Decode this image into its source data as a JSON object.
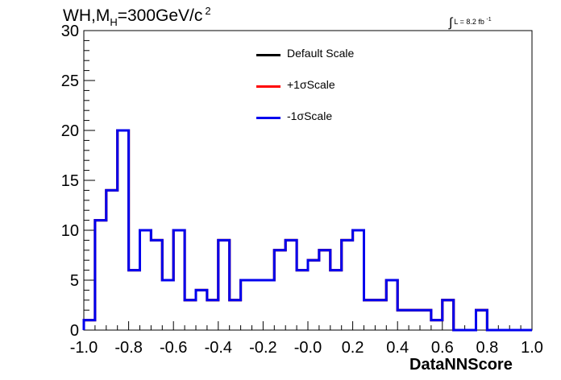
{
  "chart_data": {
    "type": "line",
    "title_main": "WH,M",
    "title_sub": "H",
    "title_rest": "=300GeV/c",
    "title_sup": "2",
    "lumi_symbol": "∫",
    "lumi_text": "L = 8.2 fb",
    "lumi_sup": "-1",
    "xlabel": "DataNNScore",
    "ylabel": "",
    "xlim": [
      -1.0,
      1.0
    ],
    "ylim": [
      0,
      30
    ],
    "xticks": [
      "-1.0",
      "-0.8",
      "-0.6",
      "-0.4",
      "-0.2",
      "-0.0",
      "0.2",
      "0.4",
      "0.6",
      "0.8",
      "1.0"
    ],
    "yticks": [
      "0",
      "5",
      "10",
      "15",
      "20",
      "25",
      "30"
    ],
    "bin_edges": [
      -1.0,
      -0.95,
      -0.9,
      -0.85,
      -0.8,
      -0.75,
      -0.7,
      -0.65,
      -0.6,
      -0.55,
      -0.5,
      -0.45,
      -0.4,
      -0.35,
      -0.3,
      -0.25,
      -0.2,
      -0.15,
      -0.1,
      -0.05,
      0.0,
      0.05,
      0.1,
      0.15,
      0.2,
      0.25,
      0.3,
      0.35,
      0.4,
      0.45,
      0.5,
      0.55,
      0.6,
      0.65,
      0.7,
      0.75,
      0.8,
      0.85,
      0.9,
      0.95,
      1.0
    ],
    "series": [
      {
        "name": "Default Scale",
        "color": "#000000",
        "values": [
          1,
          11,
          14,
          20,
          6,
          10,
          9,
          5,
          10,
          3,
          4,
          3,
          9,
          3,
          5,
          5,
          5,
          8,
          9,
          6,
          7,
          8,
          6,
          9,
          10,
          3,
          3,
          5,
          2,
          2,
          2,
          1,
          3,
          0,
          0,
          2,
          0,
          0,
          0,
          0
        ]
      },
      {
        "name": "+1σScale",
        "color": "#ff0000",
        "values": [
          1,
          11,
          14,
          20,
          6,
          10,
          9,
          5,
          10,
          3,
          4,
          3,
          9,
          3,
          5,
          5,
          5,
          8,
          9,
          6,
          7,
          8,
          6,
          9,
          10,
          3,
          3,
          5,
          2,
          2,
          2,
          1,
          3,
          0,
          0,
          2,
          0,
          0,
          0,
          0
        ]
      },
      {
        "name": "-1σScale",
        "color": "#0000ee",
        "values": [
          1,
          11,
          14,
          20,
          6,
          10,
          9,
          5,
          10,
          3,
          4,
          3,
          9,
          3,
          5,
          5,
          5,
          8,
          9,
          6,
          7,
          8,
          6,
          9,
          10,
          3,
          3,
          5,
          2,
          2,
          2,
          1,
          3,
          0,
          0,
          2,
          0,
          0,
          0,
          0
        ]
      }
    ],
    "legend_position": "top-center",
    "grid": false
  }
}
